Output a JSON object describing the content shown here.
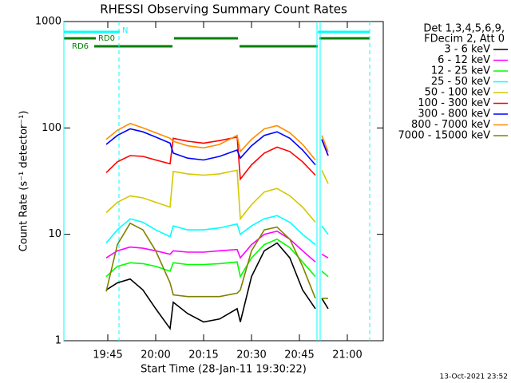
{
  "chart_data": {
    "type": "line",
    "title": "RHESSI Observing Summary Count Rates",
    "xlabel": "Start Time (28-Jan-11 19:30:22)",
    "ylabel": "Count Rate (s⁻¹ detector⁻¹)",
    "footer": "13-Oct-2021 23:52",
    "legend_header": [
      "Det 1,3,4,5,6,9,",
      "FDecim 2, Att 0"
    ],
    "log_y": true,
    "xlim": [
      1.25,
      101.25
    ],
    "xticks": [
      {
        "value": 15,
        "label": "19:45"
      },
      {
        "value": 30,
        "label": "20:00"
      },
      {
        "value": 45,
        "label": "20:15"
      },
      {
        "value": 60,
        "label": "20:30"
      },
      {
        "value": 75,
        "label": "20:45"
      },
      {
        "value": 90,
        "label": "21:00"
      }
    ],
    "ylim": [
      1,
      1000
    ],
    "yticks": [
      1,
      10,
      100,
      1000
    ],
    "x": [
      14.5,
      18,
      22,
      26,
      30,
      34.5,
      35.5,
      40,
      45,
      50,
      55.5,
      56.5,
      60,
      64,
      68,
      72,
      76,
      80,
      81,
      82,
      84
    ],
    "series": [
      {
        "name": "3 - 6 keV",
        "color": "#000000",
        "values": [
          3,
          3.5,
          3.8,
          3,
          2,
          1.3,
          2.3,
          1.8,
          1.5,
          1.6,
          2,
          1.5,
          4,
          7,
          8.3,
          6,
          3,
          2,
          null,
          2.5,
          2
        ]
      },
      {
        "name": "6 - 12 keV",
        "color": "#ff00ff",
        "values": [
          6,
          7,
          7.6,
          7.4,
          7,
          6.5,
          7,
          6.8,
          6.8,
          7,
          7.2,
          6,
          8,
          10,
          10.7,
          9,
          7,
          5.5,
          null,
          6.5,
          6
        ]
      },
      {
        "name": "12 - 25 keV",
        "color": "#00ff00",
        "values": [
          4,
          5,
          5.4,
          5.3,
          5,
          4.5,
          5.4,
          5.2,
          5.2,
          5.3,
          5.5,
          4,
          6,
          8,
          9,
          7.5,
          5.5,
          4,
          null,
          4.5,
          4
        ]
      },
      {
        "name": "25 - 50 keV",
        "color": "#00ffff",
        "values": [
          8.3,
          11,
          14,
          13,
          11,
          9.5,
          12,
          11,
          11,
          11.5,
          12.5,
          10,
          12,
          14,
          15,
          13,
          10,
          8,
          null,
          12,
          10
        ]
      },
      {
        "name": "50 - 100 keV",
        "color": "#d4c800",
        "values": [
          16,
          20,
          23,
          22,
          20,
          18,
          39,
          37,
          36,
          37,
          40,
          14,
          19,
          25,
          27,
          23,
          18,
          13,
          null,
          40,
          30
        ]
      },
      {
        "name": "100 - 300 keV",
        "color": "#ff0000",
        "values": [
          38,
          48,
          55,
          54,
          50,
          46,
          80,
          75,
          72,
          76,
          82,
          33,
          45,
          58,
          66,
          60,
          48,
          36,
          null,
          78,
          55
        ]
      },
      {
        "name": "300 - 800 keV",
        "color": "#0000ff",
        "values": [
          70,
          85,
          98,
          92,
          82,
          72,
          58,
          52,
          50,
          54,
          62,
          52,
          68,
          85,
          92,
          80,
          62,
          45,
          null,
          78,
          55
        ]
      },
      {
        "name": "800 - 7000 keV",
        "color": "#ff8c00",
        "values": [
          78,
          95,
          110,
          100,
          90,
          80,
          75,
          68,
          65,
          70,
          85,
          60,
          78,
          98,
          105,
          90,
          70,
          50,
          null,
          85,
          60
        ]
      },
      {
        "name": "7000 - 15000 keV",
        "color": "#808000",
        "values": [
          2.9,
          8,
          12.7,
          11,
          7,
          3.5,
          2.7,
          2.6,
          2.6,
          2.6,
          2.8,
          3,
          7,
          11,
          11.7,
          9,
          5,
          2.5,
          null,
          2.5,
          2.5
        ]
      }
    ],
    "flags": [
      {
        "name": "N",
        "color": "#00ffff",
        "intervals": [
          [
            1.25,
            18.75
          ],
          [
            80.75,
            97
          ]
        ]
      },
      {
        "name": "RD0",
        "color": "#008000",
        "intervals": [
          [
            1.25,
            11.25
          ],
          [
            35.75,
            55.75
          ],
          [
            81.25,
            97
          ]
        ]
      },
      {
        "name": "RD6",
        "color": "#008000",
        "intervals": [
          [
            10.75,
            35.25
          ],
          [
            56.25,
            80.75
          ]
        ]
      }
    ],
    "vlines": [
      {
        "x": 1.25,
        "color": "#00ffff",
        "dashed": false
      },
      {
        "x": 18.5,
        "color": "#00ffff",
        "dashed": true
      },
      {
        "x": 80.5,
        "color": "#00ffff",
        "dashed": false
      },
      {
        "x": 81.5,
        "color": "#00ffff",
        "dashed": false
      },
      {
        "x": 97,
        "color": "#00ffff",
        "dashed": true
      }
    ]
  }
}
